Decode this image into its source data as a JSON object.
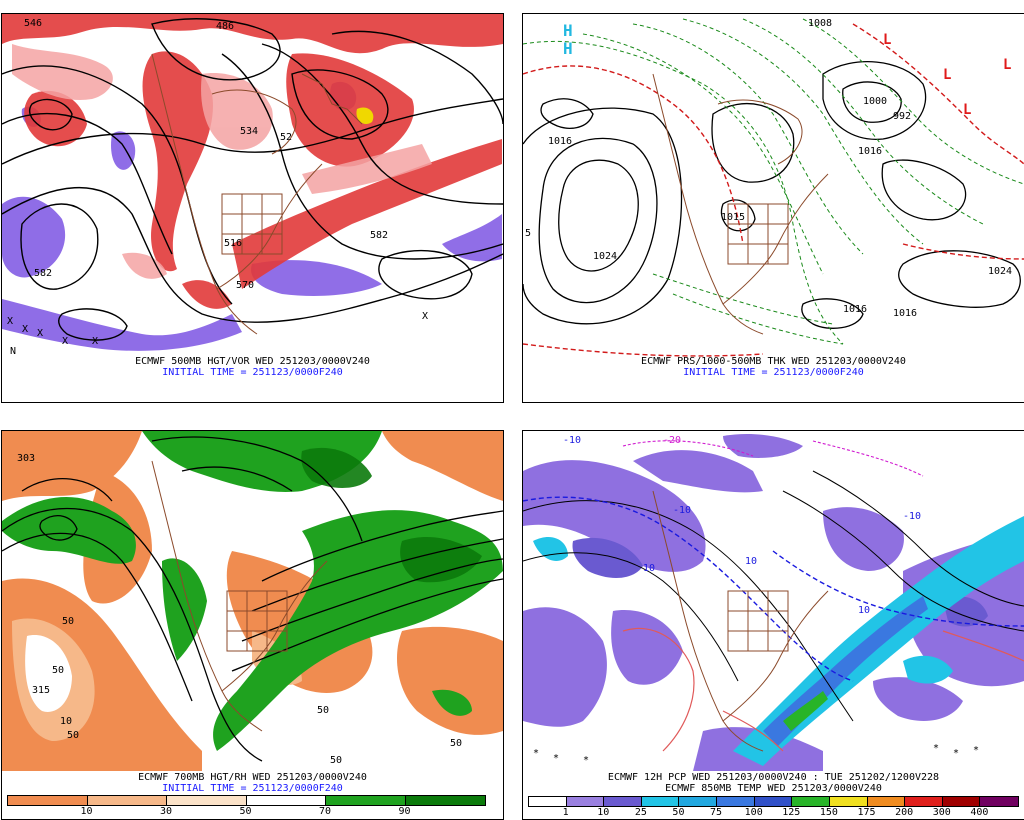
{
  "panels": {
    "top_left": {
      "caption_line1": "ECMWF 500MB HGT/VOR WED 251203/0000V240",
      "caption_line2": "INITIAL TIME = 251123/0000F240",
      "contour_labels": [
        "546",
        "486",
        "534",
        "52",
        "582",
        "582",
        "516",
        "570"
      ]
    },
    "top_right": {
      "caption_line1": "ECMWF PRS/1000-500MB THK WED 251203/0000V240",
      "caption_line2": "INITIAL TIME = 251123/0000F240",
      "contour_labels": [
        "1008",
        "1016",
        "1024",
        "1024",
        "1016",
        "1016",
        "1016",
        "1000",
        "992",
        "1015",
        "5"
      ]
    },
    "bottom_left": {
      "caption_line1": "ECMWF 700MB HGT/RH WED 251203/0000V240",
      "caption_line2": "INITIAL TIME = 251123/0000F240",
      "contour_labels": [
        "303",
        "50",
        "50",
        "315",
        "10",
        "50",
        "50",
        "50",
        "50"
      ],
      "colorbar": {
        "colors": [
          "#f08c50",
          "#f6b889",
          "#fbe2c8",
          "#ffffff",
          "#1fa21f",
          "#0b7a0b"
        ],
        "ticks": [
          "10",
          "30",
          "50",
          "70",
          "90"
        ]
      }
    },
    "bottom_right": {
      "caption_line1": "ECMWF 12H PCP WED 251203/0000V240 : TUE 251202/1200V228",
      "caption_line2": "ECMWF 850MB TEMP WED 251203/0000V240",
      "contour_labels": [
        "-20",
        "-10",
        "-10",
        "10",
        "10",
        "-10",
        "10"
      ],
      "colorbar": {
        "colors": [
          "#ffffff",
          "#9a80e0",
          "#6a5ad0",
          "#22c4e6",
          "#22a8e0",
          "#3a78e0",
          "#3050c8",
          "#28b428",
          "#f0e020",
          "#f08c20",
          "#e0201c",
          "#a00000",
          "#700060"
        ],
        "ticks": [
          "1",
          "10",
          "25",
          "50",
          "75",
          "100",
          "125",
          "150",
          "175",
          "200",
          "300",
          "400"
        ]
      }
    }
  }
}
